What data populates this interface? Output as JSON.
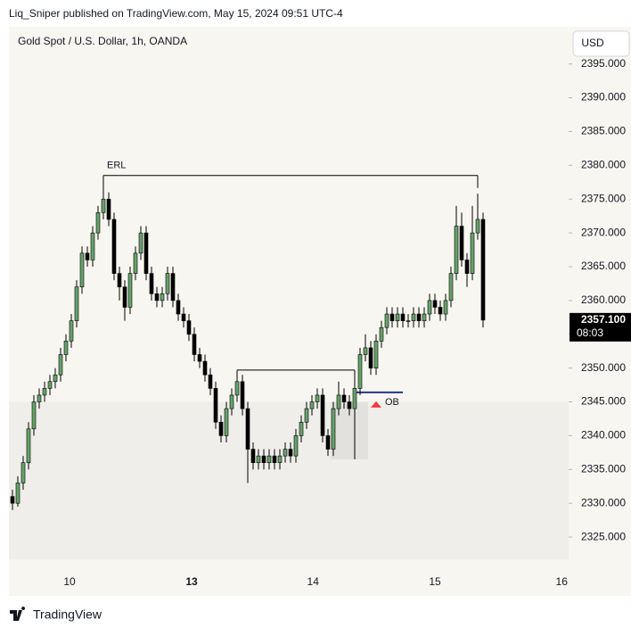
{
  "header": "Liq_Sniper published on TradingView.com, May 15, 2024 09:51 UTC-4",
  "footer": "TradingView",
  "chart_data": {
    "type": "candlestick",
    "title": "Gold Spot / U.S. Dollar, 1h, OANDA",
    "currency": "USD",
    "up_color": "#66a36a",
    "down_color": "#000000",
    "xlim": [
      -0.667,
      104
    ],
    "xticks": [
      {
        "value": 10.67,
        "label": "10"
      },
      {
        "value": 33.5,
        "label": "13"
      },
      {
        "value": 56.2,
        "label": "14"
      },
      {
        "value": 79,
        "label": "15"
      },
      {
        "value": 102.7,
        "label": "16"
      }
    ],
    "ylim": [
      2316.3,
      2400.5
    ],
    "yticks": [
      {
        "value": 2325,
        "label": "2325.000"
      },
      {
        "value": 2330,
        "label": "2330.000"
      },
      {
        "value": 2335,
        "label": "2335.000"
      },
      {
        "value": 2340,
        "label": "2340.000"
      },
      {
        "value": 2345,
        "label": "2345.000"
      },
      {
        "value": 2350,
        "label": "2350.000"
      },
      {
        "value": 2355,
        "label": "2355.000"
      },
      {
        "value": 2360,
        "label": "2360.000"
      },
      {
        "value": 2365,
        "label": "2365.000"
      },
      {
        "value": 2370,
        "label": "2370.000"
      },
      {
        "value": 2375,
        "label": "2375.000"
      },
      {
        "value": 2380,
        "label": "2380.000"
      },
      {
        "value": 2385,
        "label": "2385.000"
      },
      {
        "value": 2390,
        "label": "2390.000"
      },
      {
        "value": 2395,
        "label": "2395.000"
      }
    ],
    "last_price": {
      "value": 2357.1,
      "label": "2357.100"
    },
    "countdown": "08:03",
    "erl": {
      "label": "ERL",
      "level": 2378.5,
      "from": 17,
      "to": 87
    },
    "level2": {
      "level": 2349.7,
      "from": 42,
      "to": 64
    },
    "ob": {
      "label": "OB",
      "level": 2346.4,
      "from": 64,
      "to": 73
    },
    "zone": {
      "top": 2345,
      "bottom": 2321.7
    },
    "ob_box": {
      "top": 2345,
      "bottom": 2336.5,
      "from": 60,
      "to": 67
    },
    "ohlc": [
      [
        2331,
        2332,
        2329,
        2330
      ],
      [
        2330,
        2334,
        2329.5,
        2333
      ],
      [
        2333,
        2337,
        2332,
        2336
      ],
      [
        2336,
        2342,
        2335,
        2341
      ],
      [
        2341,
        2346,
        2340,
        2345
      ],
      [
        2345,
        2347,
        2344,
        2346
      ],
      [
        2346,
        2348,
        2345,
        2347
      ],
      [
        2347,
        2349,
        2346,
        2348
      ],
      [
        2348,
        2350,
        2347,
        2349
      ],
      [
        2349,
        2353,
        2348,
        2352
      ],
      [
        2352,
        2355,
        2351,
        2354
      ],
      [
        2354,
        2358,
        2353,
        2357
      ],
      [
        2357,
        2363,
        2356,
        2362
      ],
      [
        2362,
        2368,
        2361,
        2367
      ],
      [
        2367,
        2368,
        2365,
        2366
      ],
      [
        2366,
        2371,
        2365,
        2370
      ],
      [
        2370,
        2374,
        2369,
        2373
      ],
      [
        2373,
        2378.5,
        2372,
        2375
      ],
      [
        2375,
        2376,
        2371,
        2372
      ],
      [
        2372,
        2373,
        2363,
        2364
      ],
      [
        2364,
        2365,
        2360,
        2362
      ],
      [
        2362,
        2363,
        2357,
        2359
      ],
      [
        2359,
        2365,
        2358,
        2364
      ],
      [
        2364,
        2368,
        2363,
        2367
      ],
      [
        2367,
        2371,
        2366,
        2370
      ],
      [
        2370,
        2371,
        2363,
        2364
      ],
      [
        2364,
        2365,
        2360,
        2361
      ],
      [
        2361,
        2362,
        2359,
        2360
      ],
      [
        2360,
        2362,
        2359,
        2361
      ],
      [
        2361,
        2365,
        2360,
        2364
      ],
      [
        2364,
        2365,
        2359,
        2360
      ],
      [
        2360,
        2361,
        2357,
        2358
      ],
      [
        2358,
        2359,
        2356,
        2357
      ],
      [
        2357,
        2358,
        2354,
        2355
      ],
      [
        2355,
        2356,
        2351,
        2352
      ],
      [
        2352,
        2353,
        2350,
        2351
      ],
      [
        2351,
        2352,
        2348,
        2349
      ],
      [
        2349,
        2350,
        2346,
        2347
      ],
      [
        2347,
        2348,
        2341,
        2342
      ],
      [
        2342,
        2343,
        2339,
        2340
      ],
      [
        2340,
        2345,
        2339,
        2344
      ],
      [
        2344,
        2347,
        2343,
        2346
      ],
      [
        2346,
        2349.7,
        2345,
        2348
      ],
      [
        2348,
        2349,
        2343,
        2344
      ],
      [
        2344,
        2345,
        2333,
        2338
      ],
      [
        2338,
        2339,
        2335,
        2336
      ],
      [
        2336,
        2338,
        2335,
        2337
      ],
      [
        2337,
        2338,
        2335,
        2336
      ],
      [
        2336,
        2338,
        2335,
        2337
      ],
      [
        2337,
        2338,
        2335,
        2336
      ],
      [
        2336,
        2338,
        2335,
        2337
      ],
      [
        2337,
        2339,
        2336,
        2338
      ],
      [
        2338,
        2339,
        2336,
        2337
      ],
      [
        2337,
        2341,
        2336,
        2340
      ],
      [
        2340,
        2343,
        2339,
        2342
      ],
      [
        2342,
        2345,
        2341,
        2344
      ],
      [
        2344,
        2346,
        2343,
        2345
      ],
      [
        2345,
        2347,
        2344,
        2346
      ],
      [
        2346,
        2347,
        2339,
        2340
      ],
      [
        2340,
        2341,
        2337,
        2338
      ],
      [
        2338,
        2345,
        2337,
        2344
      ],
      [
        2344,
        2348,
        2343,
        2346
      ],
      [
        2346,
        2347,
        2344,
        2345
      ],
      [
        2345,
        2346,
        2343,
        2344
      ],
      [
        2344,
        2348,
        2336.5,
        2347
      ],
      [
        2347,
        2353,
        2346,
        2352
      ],
      [
        2352,
        2355,
        2351,
        2353
      ],
      [
        2353,
        2354,
        2349,
        2350
      ],
      [
        2350,
        2355,
        2349,
        2354
      ],
      [
        2354,
        2357,
        2353,
        2356
      ],
      [
        2356,
        2359,
        2355,
        2358
      ],
      [
        2358,
        2359,
        2356,
        2357
      ],
      [
        2357,
        2359,
        2356,
        2358
      ],
      [
        2358,
        2359,
        2356,
        2357
      ],
      [
        2357,
        2358,
        2356,
        2357
      ],
      [
        2357,
        2359,
        2356,
        2358
      ],
      [
        2358,
        2359,
        2356,
        2357
      ],
      [
        2357,
        2359,
        2356,
        2358
      ],
      [
        2358,
        2361,
        2357,
        2360
      ],
      [
        2360,
        2361,
        2358,
        2359
      ],
      [
        2359,
        2360,
        2357,
        2358
      ],
      [
        2358,
        2361,
        2357,
        2360
      ],
      [
        2360,
        2365,
        2359,
        2364
      ],
      [
        2364,
        2374,
        2363,
        2371
      ],
      [
        2371,
        2373,
        2365,
        2366
      ],
      [
        2366,
        2367,
        2362,
        2364
      ],
      [
        2364,
        2374,
        2363,
        2370
      ],
      [
        2370,
        2375.8,
        2369,
        2372
      ],
      [
        2372,
        2373,
        2356,
        2357.1
      ]
    ]
  }
}
